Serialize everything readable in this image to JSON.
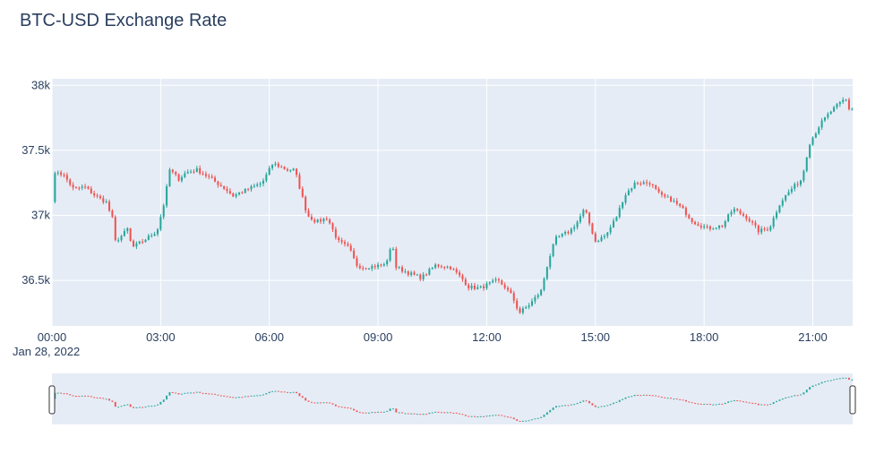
{
  "chart_data": {
    "type": "candlestick",
    "title": "BTC-USD Exchange Rate",
    "x_tick_labels": [
      "00:00",
      "03:00",
      "06:00",
      "09:00",
      "12:00",
      "15:00",
      "18:00",
      "21:00"
    ],
    "x_date_label": "Jan 28, 2022",
    "y_tick_labels": [
      "36.5k",
      "37k",
      "37.5k",
      "38k"
    ],
    "y_tick_values": [
      36500,
      37000,
      37500,
      38000
    ],
    "ylim": [
      36150,
      38050
    ],
    "x_range_hours": [
      0,
      22.1
    ],
    "candle_interval_minutes": 5,
    "grid": true,
    "rangeslider": true,
    "colors": {
      "increasing": "#26a69a",
      "decreasing": "#ef5350",
      "plot_bg": "#e5ecf6",
      "grid": "#ffffff",
      "text": "#2a3f5f"
    },
    "anchors": [
      [
        0.0,
        37120
      ],
      [
        0.1,
        37350
      ],
      [
        0.35,
        37300
      ],
      [
        0.6,
        37200
      ],
      [
        0.9,
        37220
      ],
      [
        1.2,
        37150
      ],
      [
        1.5,
        37100
      ],
      [
        1.7,
        36950
      ],
      [
        1.75,
        36800
      ],
      [
        1.95,
        36850
      ],
      [
        2.1,
        36900
      ],
      [
        2.2,
        36750
      ],
      [
        2.5,
        36800
      ],
      [
        2.9,
        36880
      ],
      [
        3.1,
        37100
      ],
      [
        3.25,
        37350
      ],
      [
        3.5,
        37280
      ],
      [
        3.7,
        37330
      ],
      [
        4.0,
        37350
      ],
      [
        4.3,
        37300
      ],
      [
        4.8,
        37200
      ],
      [
        5.0,
        37150
      ],
      [
        5.4,
        37200
      ],
      [
        5.8,
        37250
      ],
      [
        6.1,
        37400
      ],
      [
        6.5,
        37350
      ],
      [
        6.7,
        37350
      ],
      [
        6.85,
        37200
      ],
      [
        7.05,
        37000
      ],
      [
        7.3,
        36950
      ],
      [
        7.6,
        36980
      ],
      [
        7.9,
        36800
      ],
      [
        8.2,
        36750
      ],
      [
        8.4,
        36620
      ],
      [
        8.6,
        36600
      ],
      [
        9.2,
        36620
      ],
      [
        9.4,
        36780
      ],
      [
        9.5,
        36600
      ],
      [
        9.9,
        36550
      ],
      [
        10.2,
        36520
      ],
      [
        10.6,
        36620
      ],
      [
        11.0,
        36600
      ],
      [
        11.3,
        36520
      ],
      [
        11.5,
        36450
      ],
      [
        11.8,
        36440
      ],
      [
        12.3,
        36500
      ],
      [
        12.5,
        36450
      ],
      [
        12.7,
        36380
      ],
      [
        12.9,
        36250
      ],
      [
        13.2,
        36320
      ],
      [
        13.5,
        36420
      ],
      [
        13.7,
        36650
      ],
      [
        13.9,
        36820
      ],
      [
        14.3,
        36880
      ],
      [
        14.5,
        36950
      ],
      [
        14.7,
        37050
      ],
      [
        15.0,
        36800
      ],
      [
        15.3,
        36850
      ],
      [
        15.6,
        37000
      ],
      [
        15.8,
        37150
      ],
      [
        16.1,
        37250
      ],
      [
        16.5,
        37250
      ],
      [
        16.8,
        37150
      ],
      [
        17.1,
        37120
      ],
      [
        17.4,
        37050
      ],
      [
        17.7,
        36950
      ],
      [
        18.1,
        36900
      ],
      [
        18.5,
        36920
      ],
      [
        18.8,
        37050
      ],
      [
        19.2,
        36980
      ],
      [
        19.5,
        36880
      ],
      [
        19.8,
        36900
      ],
      [
        20.1,
        37100
      ],
      [
        20.4,
        37200
      ],
      [
        20.7,
        37280
      ],
      [
        20.9,
        37550
      ],
      [
        21.2,
        37700
      ],
      [
        21.5,
        37800
      ],
      [
        21.9,
        37900
      ],
      [
        22.0,
        37820
      ]
    ]
  }
}
